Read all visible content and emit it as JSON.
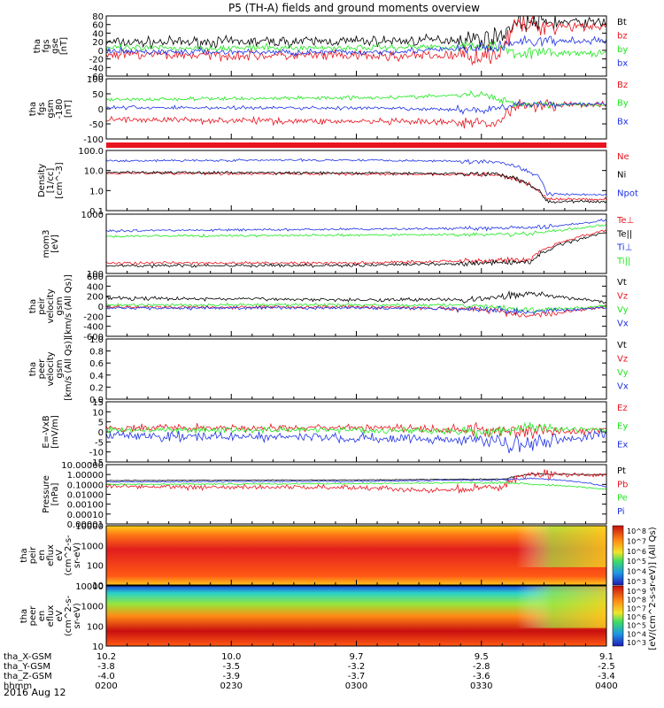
{
  "title": "P5 (TH-A) fields and ground moments overview",
  "date_label": "2016 Aug 12",
  "colors": {
    "black": "#000000",
    "red": "#e8141e",
    "green": "#1ee81e",
    "blue": "#1e32e6"
  },
  "chart_data": [
    {
      "type": "line",
      "id": "fgs-gse",
      "ylabel_lines": [
        "tha",
        "fgs",
        "gse",
        "[nT]"
      ],
      "yticks": [
        "80",
        "60",
        "40",
        "20",
        "0",
        "-20",
        "-40",
        "-60"
      ],
      "ylim": [
        -60,
        80
      ],
      "series": [
        {
          "name": "Bt",
          "color": "black",
          "segments": [
            {
              "x": [
                0,
                0.3,
                0.6,
                0.78,
                0.82,
                1
              ],
              "y": [
                18,
                20,
                22,
                28,
                65,
                65
              ],
              "noise": 10
            }
          ]
        },
        {
          "name": "bz",
          "color": "red",
          "segments": [
            {
              "x": [
                0,
                0.3,
                0.6,
                0.78,
                0.82,
                1
              ],
              "y": [
                -10,
                -12,
                -14,
                -10,
                58,
                56
              ],
              "noise": 10
            }
          ]
        },
        {
          "name": "by",
          "color": "green",
          "segments": [
            {
              "x": [
                0,
                0.5,
                0.78,
                0.82,
                1
              ],
              "y": [
                5,
                6,
                10,
                -5,
                -8
              ],
              "noise": 6
            }
          ]
        },
        {
          "name": "bx",
          "color": "blue",
          "segments": [
            {
              "x": [
                0,
                0.5,
                0.78,
                0.82,
                1
              ],
              "y": [
                -3,
                -5,
                5,
                20,
                22
              ],
              "noise": 6
            }
          ]
        }
      ]
    },
    {
      "type": "line",
      "id": "fgs-gsm",
      "ylabel_lines": [
        "tha",
        "fgs",
        "gsm",
        "-180",
        "[nT]"
      ],
      "yticks": [
        "100",
        "50",
        "0",
        "-50",
        "-100"
      ],
      "ylim": [
        -130,
        100
      ],
      "series": [
        {
          "name": "Bz",
          "color": "red",
          "segments": [
            {
              "x": [
                0,
                0.3,
                0.6,
                0.78,
                0.82,
                1
              ],
              "y": [
                -55,
                -60,
                -65,
                -70,
                0,
                2
              ],
              "noise": 10
            }
          ]
        },
        {
          "name": "By",
          "color": "green",
          "segments": [
            {
              "x": [
                0,
                0.3,
                0.6,
                0.75,
                0.82,
                1
              ],
              "y": [
                20,
                25,
                30,
                40,
                5,
                0
              ],
              "noise": 6
            }
          ]
        },
        {
          "name": "Bx",
          "color": "blue",
          "segments": [
            {
              "x": [
                0,
                0.5,
                0.75,
                0.82,
                1
              ],
              "y": [
                -10,
                -12,
                -20,
                0,
                5
              ],
              "noise": 6
            }
          ]
        }
      ]
    },
    {
      "type": "line",
      "id": "density",
      "ylog": true,
      "ylabel_lines": [
        "Density",
        "[1/cc]",
        "[cm^-3]"
      ],
      "yticks": [
        "100.0",
        "10.0",
        "1.0",
        "0.1"
      ],
      "ylim": [
        0.1,
        160
      ],
      "series": [
        {
          "name": "Ne",
          "color": "red",
          "segments": [
            {
              "x": [
                0,
                0.5,
                0.78,
                0.85,
                0.88,
                1
              ],
              "y": [
                10,
                9,
                8,
                2,
                0.4,
                0.4
              ],
              "noise": 0.06
            }
          ]
        },
        {
          "name": "Ni",
          "color": "black",
          "segments": [
            {
              "x": [
                0,
                0.5,
                0.78,
                0.85,
                0.88,
                1
              ],
              "y": [
                11,
                10,
                9,
                2,
                0.3,
                0.3
              ],
              "noise": 0.06
            }
          ]
        },
        {
          "name": "Npot",
          "color": "blue",
          "segments": [
            {
              "x": [
                0,
                0.5,
                0.78,
                0.85,
                0.88,
                1
              ],
              "y": [
                45,
                50,
                40,
                10,
                0.8,
                0.7
              ],
              "noise": 0.05
            }
          ]
        }
      ]
    },
    {
      "type": "line",
      "id": "temperature",
      "ylog": true,
      "ylabel_lines": [
        "mom3",
        "[eV]"
      ],
      "yticks": [
        "1000",
        "100"
      ],
      "ylim": [
        40,
        3000
      ],
      "series": [
        {
          "name": "Te⊥",
          "color": "red",
          "segments": [
            {
              "x": [
                0,
                0.5,
                0.85,
                0.95,
                1
              ],
              "y": [
                85,
                85,
                110,
                600,
                900
              ],
              "noise": 0.04
            }
          ]
        },
        {
          "name": "Te||",
          "color": "black",
          "segments": [
            {
              "x": [
                0,
                0.5,
                0.85,
                0.95,
                1
              ],
              "y": [
                70,
                72,
                90,
                500,
                800
              ],
              "noise": 0.04
            }
          ]
        },
        {
          "name": "Ti⊥",
          "color": "blue",
          "segments": [
            {
              "x": [
                0,
                0.5,
                0.85,
                0.95,
                1
              ],
              "y": [
                900,
                1000,
                1100,
                1500,
                2000
              ],
              "noise": 0.03
            }
          ]
        },
        {
          "name": "Ti||",
          "color": "green",
          "segments": [
            {
              "x": [
                0,
                0.5,
                0.85,
                0.95,
                1
              ],
              "y": [
                600,
                650,
                700,
                1100,
                1400
              ],
              "noise": 0.03
            }
          ]
        }
      ]
    },
    {
      "type": "line",
      "id": "peir-velocity",
      "ylabel_lines": [
        "tha",
        "peir",
        "velocity",
        "gsm",
        "[km/s (All Qs)]"
      ],
      "yticks": [
        "600",
        "400",
        "200",
        "0",
        "-200",
        "-400",
        "-600"
      ],
      "ylim": [
        -600,
        600
      ],
      "series": [
        {
          "name": "Vt",
          "color": "black",
          "segments": [
            {
              "x": [
                0,
                0.5,
                0.75,
                0.85,
                1
              ],
              "y": [
                160,
                130,
                140,
                250,
                80
              ],
              "noise": 30
            }
          ]
        },
        {
          "name": "Vz",
          "color": "red",
          "segments": [
            {
              "x": [
                0,
                0.5,
                0.75,
                0.85,
                1
              ],
              "y": [
                -20,
                -10,
                -60,
                -200,
                0
              ],
              "noise": 30
            }
          ]
        },
        {
          "name": "Vy",
          "color": "green",
          "segments": [
            {
              "x": [
                0,
                0.5,
                0.75,
                0.85,
                1
              ],
              "y": [
                20,
                30,
                10,
                -80,
                0
              ],
              "noise": 25
            }
          ]
        },
        {
          "name": "Vx",
          "color": "blue",
          "segments": [
            {
              "x": [
                0,
                0.5,
                0.75,
                0.85,
                1
              ],
              "y": [
                -40,
                -30,
                -50,
                -120,
                -20
              ],
              "noise": 25
            }
          ]
        }
      ]
    },
    {
      "type": "line",
      "id": "peer-velocity",
      "ylabel_lines": [
        "tha",
        "peer",
        "velocity",
        "gsm",
        "[km/s (All Qs)]"
      ],
      "yticks": [
        "1.0",
        "0.8",
        "0.6",
        "0.4",
        "0.2",
        "0.0"
      ],
      "ylim": [
        0,
        1
      ],
      "series": [
        {
          "name": "Vt",
          "color": "black",
          "segments": []
        },
        {
          "name": "Vz",
          "color": "red",
          "segments": []
        },
        {
          "name": "Vy",
          "color": "green",
          "segments": []
        },
        {
          "name": "Vx",
          "color": "blue",
          "segments": []
        }
      ]
    },
    {
      "type": "line",
      "id": "efield",
      "ylabel_lines": [
        "E=-VxB",
        "[mV/m]"
      ],
      "yticks": [
        "15",
        "10",
        "5",
        "0",
        "-5",
        "-10",
        "-15"
      ],
      "ylim": [
        -15,
        15
      ],
      "series": [
        {
          "name": "Ez",
          "color": "red",
          "segments": [
            {
              "x": [
                0,
                0.5,
                0.75,
                0.85,
                1
              ],
              "y": [
                2,
                2,
                1,
                0,
                1
              ],
              "noise": 1.5
            }
          ]
        },
        {
          "name": "Ey",
          "color": "green",
          "segments": [
            {
              "x": [
                0,
                0.5,
                0.75,
                0.85,
                1
              ],
              "y": [
                1,
                1,
                0,
                2,
                1
              ],
              "noise": 1.2
            }
          ]
        },
        {
          "name": "Ex",
          "color": "blue",
          "segments": [
            {
              "x": [
                0,
                0.5,
                0.75,
                0.85,
                1
              ],
              "y": [
                -2,
                -3,
                -4,
                -6,
                -1
              ],
              "noise": 2
            }
          ]
        }
      ]
    },
    {
      "type": "line",
      "id": "pressure",
      "ylog": true,
      "ylabel_lines": [
        "Pressure",
        "[nPa]"
      ],
      "yticks": [
        "10.00000",
        "1.00000",
        "0.10000",
        "0.01000",
        "0.00100",
        "0.00010",
        "0.00001"
      ],
      "ylim": [
        1e-05,
        10
      ],
      "series": [
        {
          "name": "Pt",
          "color": "black",
          "segments": [
            {
              "x": [
                0,
                0.5,
                0.8,
                0.85,
                1
              ],
              "y": [
                0.25,
                0.28,
                0.35,
                1.1,
                1.0
              ],
              "noise": 0.03
            }
          ]
        },
        {
          "name": "Pb",
          "color": "red",
          "segments": [
            {
              "x": [
                0,
                0.5,
                0.65,
                0.8,
                0.85,
                1
              ],
              "y": [
                0.06,
                0.05,
                0.02,
                0.06,
                1.0,
                0.95
              ],
              "noise": 0.2
            }
          ]
        },
        {
          "name": "Pe",
          "color": "green",
          "segments": [
            {
              "x": [
                0,
                0.5,
                0.8,
                0.85,
                1
              ],
              "y": [
                0.1,
                0.12,
                0.15,
                0.1,
                0.03
              ],
              "noise": 0.05
            }
          ]
        },
        {
          "name": "Pi",
          "color": "blue",
          "segments": [
            {
              "x": [
                0,
                0.5,
                0.8,
                0.85,
                1
              ],
              "y": [
                0.18,
                0.2,
                0.3,
                0.4,
                0.05
              ],
              "noise": 0.05
            }
          ]
        }
      ]
    },
    {
      "type": "heatmap",
      "id": "peir-eflux",
      "ylabel_lines": [
        "tha",
        "peir",
        "en",
        "eflux",
        "eV",
        "(cm^2-s-",
        "sr-eV)"
      ],
      "yticks": [
        "10000",
        "1000",
        "100",
        "10"
      ],
      "colorbar_ticks": [
        "10^8",
        "10^7",
        "10^6",
        "10^5",
        "10^4",
        "10^3"
      ]
    },
    {
      "type": "heatmap",
      "id": "peer-eflux",
      "ylabel_lines": [
        "tha",
        "peer",
        "en",
        "eflux",
        "eV",
        "(cm^2-s-",
        "sr-eV)"
      ],
      "yticks": [
        "10000",
        "1000",
        "100",
        "10"
      ],
      "colorbar_ticks": [
        "10^9",
        "10^8",
        "10^7",
        "10^6",
        "10^5",
        "10^4",
        "10^3"
      ]
    }
  ],
  "colorbar_unit": "[eV/(cm^2-s-sr-eV)] (All Qs)",
  "x_axis": {
    "rows": [
      {
        "label": "tha_X-GSM",
        "values": [
          "10.2",
          "10.0",
          "9.7",
          "9.5",
          "9.1"
        ]
      },
      {
        "label": "tha_Y-GSM",
        "values": [
          "-3.8",
          "-3.5",
          "-3.2",
          "-2.8",
          "-2.5"
        ]
      },
      {
        "label": "tha_Z-GSM",
        "values": [
          "-4.0",
          "-3.9",
          "-3.7",
          "-3.6",
          "-3.4"
        ]
      },
      {
        "label": "hhmm",
        "values": [
          "0200",
          "0230",
          "0300",
          "0330",
          "0400"
        ]
      }
    ]
  }
}
